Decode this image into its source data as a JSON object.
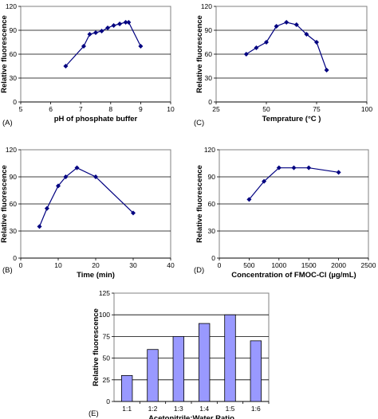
{
  "chart_data": [
    {
      "panel_label": "(A)",
      "type": "line",
      "xlabel": "pH of phosphate buffer",
      "ylabel": "Relative fluorescence",
      "xlim": [
        5,
        10
      ],
      "ylim": [
        0,
        120
      ],
      "xticks": [
        "5",
        "6",
        "7",
        "8",
        "9",
        "10"
      ],
      "yticks": [
        "0",
        "30",
        "60",
        "90",
        "120"
      ],
      "grid": "horizontal",
      "x": [
        6.5,
        7.1,
        7.3,
        7.5,
        7.7,
        7.9,
        8.1,
        8.3,
        8.5,
        8.6,
        9.0
      ],
      "y": [
        45,
        70,
        85,
        87,
        89,
        93,
        96,
        98,
        100,
        100,
        70
      ],
      "color": "#000080"
    },
    {
      "panel_label": "(C)",
      "type": "line",
      "xlabel": "Temprature (°C )",
      "ylabel": "Relative fluorescence",
      "xlim": [
        25,
        100
      ],
      "ylim": [
        0,
        120
      ],
      "xticks": [
        "25",
        "50",
        "75",
        "100"
      ],
      "yticks": [
        "0",
        "30",
        "60",
        "90",
        "120"
      ],
      "grid": "horizontal",
      "x": [
        40,
        45,
        50,
        55,
        60,
        65,
        70,
        75,
        80
      ],
      "y": [
        60,
        68,
        75,
        95,
        100,
        97,
        85,
        75,
        40
      ],
      "color": "#000080"
    },
    {
      "panel_label": "(B)",
      "type": "line",
      "xlabel": "Time (min)",
      "ylabel": "Relative fluorescence",
      "xlim": [
        0,
        40
      ],
      "ylim": [
        0,
        120
      ],
      "xticks": [
        "0",
        "10",
        "20",
        "30",
        "40"
      ],
      "yticks": [
        "0",
        "30",
        "60",
        "90",
        "120"
      ],
      "grid": "horizontal",
      "x": [
        5,
        7,
        10,
        12,
        15,
        20,
        30
      ],
      "y": [
        35,
        55,
        80,
        90,
        100,
        90,
        50
      ],
      "color": "#000080"
    },
    {
      "panel_label": "(D)",
      "type": "line",
      "xlabel": "Concentration of FMOC-Cl (µg/mL)",
      "ylabel": "Relative fluorescence",
      "xlim": [
        0,
        2500
      ],
      "ylim": [
        0,
        120
      ],
      "xticks": [
        "0",
        "500",
        "1000",
        "1500",
        "2000",
        "2500"
      ],
      "yticks": [
        "0",
        "30",
        "60",
        "90",
        "120"
      ],
      "grid": "horizontal",
      "x": [
        500,
        750,
        1000,
        1250,
        1500,
        2000
      ],
      "y": [
        65,
        85,
        100,
        100,
        100,
        95
      ],
      "color": "#000080"
    },
    {
      "panel_label": "(E)",
      "type": "bar",
      "xlabel": "Acetonitrile:Water Ratio",
      "ylabel": "Relative fluorescence",
      "ylim": [
        0,
        125
      ],
      "yticks": [
        "0",
        "25",
        "50",
        "75",
        "100",
        "125"
      ],
      "grid": "horizontal",
      "categories": [
        "1:1",
        "1:2",
        "1:3",
        "1:4",
        "1:5",
        "1:6"
      ],
      "values": [
        30,
        60,
        75,
        90,
        100,
        70
      ],
      "color": "#9999ff"
    }
  ]
}
